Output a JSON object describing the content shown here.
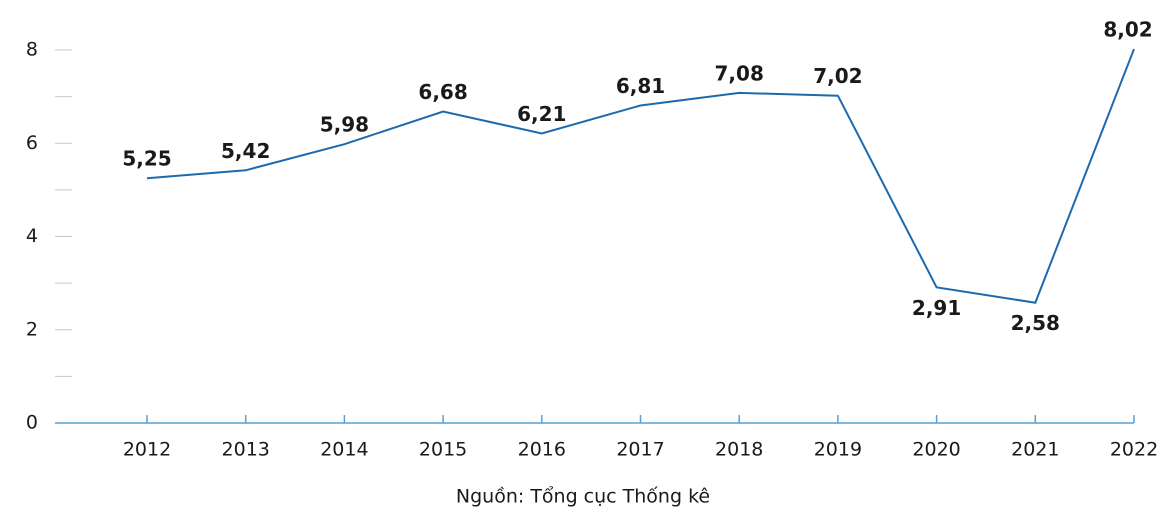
{
  "chart_data": {
    "type": "line",
    "categories": [
      "2012",
      "2013",
      "2014",
      "2015",
      "2016",
      "2017",
      "2018",
      "2019",
      "2020",
      "2021",
      "2022"
    ],
    "values": [
      5.25,
      5.42,
      5.98,
      6.68,
      6.21,
      6.81,
      7.08,
      7.02,
      2.91,
      2.58,
      8.02
    ],
    "value_labels": [
      "5,25",
      "5,42",
      "5,98",
      "6,68",
      "6,21",
      "6,81",
      "7,08",
      "7,02",
      "2,91",
      "2,58",
      "8,02"
    ],
    "color": "#1c6aae",
    "ylim": [
      0,
      8
    ],
    "yticks": [
      0,
      2,
      4,
      6,
      8
    ],
    "yticks_minor": [
      1,
      3,
      5,
      7
    ],
    "source": "Nguồn: Tổng cục Thống kê"
  }
}
